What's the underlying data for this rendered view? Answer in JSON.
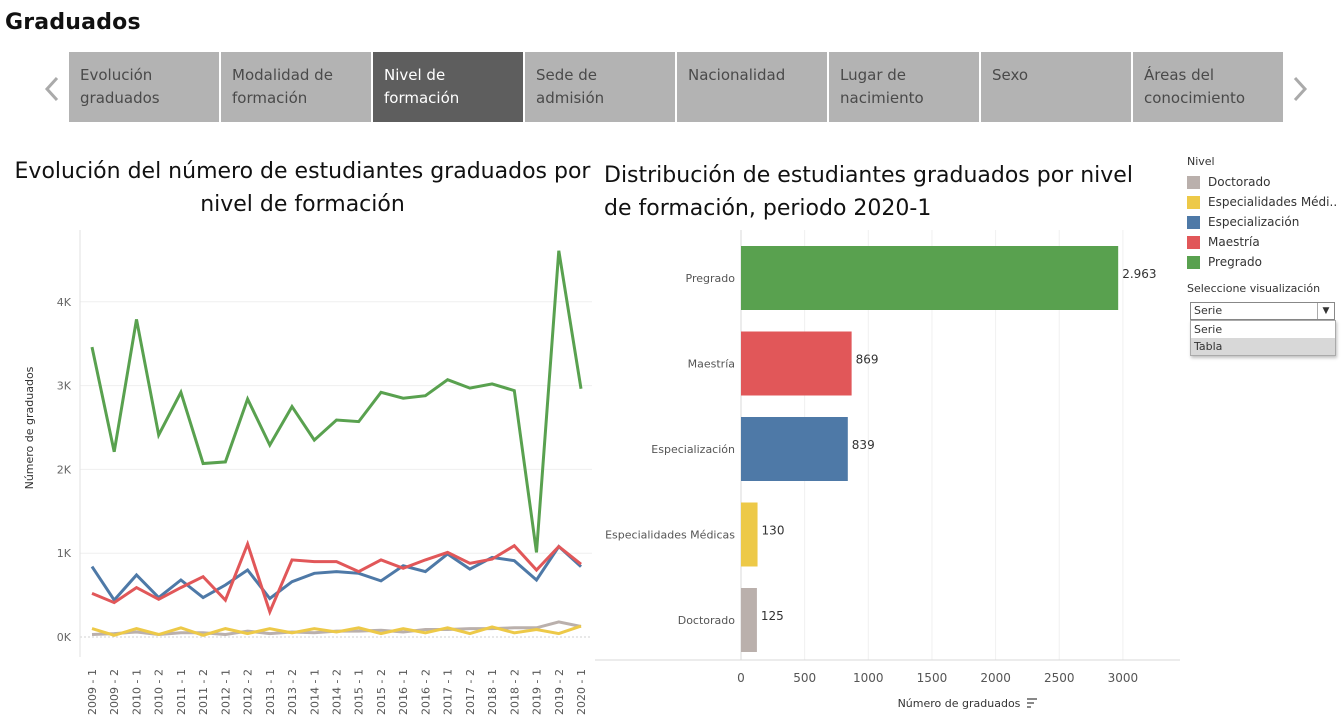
{
  "page": {
    "title": "Graduados"
  },
  "tabs": [
    {
      "label": "Evolución graduados"
    },
    {
      "label": "Modalidad de formación"
    },
    {
      "label": "Nivel de formación"
    },
    {
      "label": "Sede de admisión"
    },
    {
      "label": "Nacionalidad"
    },
    {
      "label": "Lugar de nacimiento"
    },
    {
      "label": "Sexo"
    },
    {
      "label": "Áreas del conocimiento"
    }
  ],
  "active_tab": "Nivel de formación",
  "colors": {
    "Doctorado": "#bab0ac",
    "Especialidades Médicas": "#edc948",
    "Especialización": "#4e79a7",
    "Maestría": "#e15759",
    "Pregrado": "#59a14f",
    "active_tab": "#5e5e5e",
    "tab": "#b3b3b3"
  },
  "icons": {
    "prev": "chevron-left-icon",
    "next": "chevron-right-icon",
    "sort": "sort-icon",
    "dropdown": "caret-down-icon"
  },
  "legend": {
    "title": "Nivel",
    "items": [
      {
        "label": "Doctorado",
        "color": "#bab0ac"
      },
      {
        "label": "Especialidades Médi..",
        "color": "#edc948"
      },
      {
        "label": "Especialización",
        "color": "#4e79a7"
      },
      {
        "label": "Maestría",
        "color": "#e15759"
      },
      {
        "label": "Pregrado",
        "color": "#59a14f"
      }
    ]
  },
  "visualization": {
    "label": "Seleccione visualización",
    "selected": "Serie",
    "options": [
      "Serie",
      "Tabla"
    ]
  },
  "chart_data": [
    {
      "type": "line",
      "title": "Evolución del número de estudiantes graduados por nivel de formación",
      "ylabel": "Número de graduados",
      "xlabel": "",
      "ylim": [
        0,
        4800
      ],
      "yticks": [
        0,
        1000,
        2000,
        3000,
        4000
      ],
      "ytick_labels": [
        "0K",
        "1K",
        "2K",
        "3K",
        "4K"
      ],
      "x": [
        "2009 - 1",
        "2009 - 2",
        "2010 - 1",
        "2010 - 2",
        "2011 - 1",
        "2011 - 2",
        "2012 - 1",
        "2012 - 2",
        "2013 - 1",
        "2013 - 2",
        "2014 - 1",
        "2014 - 2",
        "2015 - 1",
        "2015 - 2",
        "2016 - 1",
        "2016 - 2",
        "2017 - 1",
        "2017 - 2",
        "2018 - 1",
        "2018 - 2",
        "2019 - 1",
        "2019 - 2",
        "2020 - 1"
      ],
      "series": [
        {
          "name": "Pregrado",
          "values": [
            3460,
            2210,
            3790,
            2410,
            2920,
            2070,
            2090,
            2840,
            2290,
            2750,
            2350,
            2590,
            2570,
            2920,
            2850,
            2880,
            3070,
            2970,
            3020,
            2940,
            1010,
            4610,
            2963
          ]
        },
        {
          "name": "Maestría",
          "values": [
            520,
            410,
            590,
            450,
            590,
            720,
            440,
            1110,
            300,
            920,
            900,
            900,
            780,
            920,
            820,
            920,
            1010,
            880,
            930,
            1090,
            800,
            1080,
            869
          ]
        },
        {
          "name": "Especialización",
          "values": [
            840,
            440,
            740,
            470,
            680,
            470,
            620,
            800,
            460,
            660,
            760,
            780,
            760,
            670,
            850,
            780,
            990,
            810,
            950,
            910,
            680,
            1080,
            839
          ]
        },
        {
          "name": "Especialidades Médicas",
          "values": [
            100,
            20,
            100,
            30,
            110,
            20,
            100,
            40,
            100,
            50,
            100,
            60,
            110,
            40,
            100,
            50,
            110,
            40,
            120,
            50,
            90,
            40,
            130
          ]
        },
        {
          "name": "Doctorado",
          "values": [
            30,
            40,
            60,
            30,
            50,
            50,
            30,
            70,
            40,
            60,
            50,
            70,
            70,
            80,
            60,
            90,
            90,
            100,
            100,
            110,
            110,
            180,
            125
          ]
        }
      ]
    },
    {
      "type": "bar",
      "title": "Distribución de estudiantes graduados por nivel de formación, periodo 2020-1",
      "xlabel": "Número de graduados",
      "ylabel": "",
      "xlim": [
        0,
        3400
      ],
      "xticks": [
        0,
        500,
        1000,
        1500,
        2000,
        2500,
        3000
      ],
      "categories": [
        "Pregrado",
        "Maestría",
        "Especialización",
        "Especialidades Médicas",
        "Doctorado"
      ],
      "values": [
        2963,
        869,
        839,
        130,
        125
      ],
      "value_labels": [
        "2.963",
        "869",
        "839",
        "130",
        "125"
      ]
    }
  ]
}
